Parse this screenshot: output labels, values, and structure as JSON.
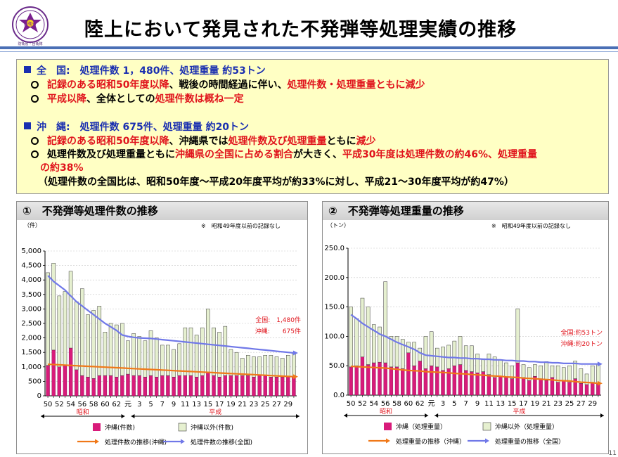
{
  "header": {
    "title": "陸上において発見された不発弾等処理実績の推移",
    "logo_text": "防衛省",
    "logo_subtext": "防衛省・自衛隊"
  },
  "summary": {
    "national": {
      "heading": "全　国:　処理件数 1，480件、処理重量 約53トン",
      "b1_red1": "記録のある昭和50年度以降",
      "b1_text": "、戦後の時間経過に伴い、",
      "b1_red2": "処理件数・処理重量ともに減少",
      "b2_red1": "平成以降",
      "b2_text": "、全体としての",
      "b2_red2": "処理件数は概ね一定"
    },
    "okinawa": {
      "heading": "沖　縄:　処理件数 675件、処理重量 約20トン",
      "b1_red1": "記録のある昭和50年度以降",
      "b1_text1": "、沖縄県では",
      "b1_red2": "処理件数及び処理重量",
      "b1_text2": "ともに",
      "b1_red3": "減少",
      "b2_text1": "処理件数及び処理重量ともに",
      "b2_red1": "沖縄県の全国に占める割合",
      "b2_text2": "が大きく、",
      "b2_red2": "平成30年度は処理件数の約46%、処理重量",
      "b2_red3": "の約38%",
      "note": "（処理件数の全国比は、昭和50年度～平成20年度平均が約33%に対し、平成21～30年度平均が約47%）"
    }
  },
  "colors": {
    "okinawa_bar": "#d81b7a",
    "other_bar": "#e6f0d0",
    "okinawa_line": "#f07818",
    "national_line": "#7078e8",
    "title_blue": "#1a2fb0",
    "accent_red": "#e0141c"
  },
  "chart_data": [
    {
      "type": "bar",
      "id": "count",
      "title": "①　不発弾等処理件数の推移",
      "ylabel": "（件）",
      "note": "※　昭和49年度以前の記録なし",
      "ylim": [
        0,
        5000
      ],
      "yticks": [
        "0",
        "500",
        "1,000",
        "1,500",
        "2,000",
        "2,500",
        "3,000",
        "3,500",
        "4,000",
        "4,500",
        "5,000"
      ],
      "categories": [
        "50",
        "51",
        "52",
        "53",
        "54",
        "55",
        "56",
        "57",
        "58",
        "59",
        "60",
        "61",
        "62",
        "63",
        "元",
        "2",
        "3",
        "4",
        "5",
        "6",
        "7",
        "8",
        "9",
        "10",
        "11",
        "12",
        "13",
        "14",
        "15",
        "16",
        "17",
        "18",
        "19",
        "20",
        "21",
        "22",
        "23",
        "24",
        "25",
        "26",
        "27",
        "28",
        "29",
        "30"
      ],
      "xtick_labels": [
        "50",
        "52",
        "54",
        "56",
        "58",
        "60",
        "62",
        "元",
        "3",
        "5",
        "7",
        "9",
        "11",
        "13",
        "15",
        "17",
        "19",
        "21",
        "23",
        "25",
        "27",
        "29"
      ],
      "era_showa": "昭和",
      "era_heisei": "平成",
      "series": [
        {
          "name": "沖縄(件数)",
          "kind": "bar",
          "values": [
            1050,
            1580,
            1000,
            1050,
            1650,
            900,
            700,
            650,
            600,
            700,
            700,
            700,
            650,
            700,
            750,
            700,
            700,
            650,
            700,
            650,
            700,
            700,
            650,
            700,
            700,
            700,
            650,
            700,
            800,
            700,
            650,
            700,
            700,
            700,
            700,
            700,
            650,
            700,
            700,
            650,
            650,
            650,
            650,
            675
          ]
        },
        {
          "name": "沖縄以外(件数)",
          "kind": "bar",
          "values": [
            3200,
            3000,
            2450,
            2550,
            2650,
            2350,
            3000,
            2150,
            2350,
            2400,
            1500,
            1800,
            1800,
            1800,
            1150,
            1450,
            1350,
            1250,
            1550,
            1350,
            1050,
            1050,
            950,
            1100,
            1650,
            1650,
            1450,
            1650,
            2200,
            1650,
            1550,
            1700,
            900,
            800,
            600,
            700,
            700,
            650,
            700,
            750,
            700,
            650,
            750,
            805
          ]
        },
        {
          "name": "処理件数の推移(沖縄)",
          "kind": "line",
          "values": [
            1090,
            1080,
            1070,
            1060,
            1050,
            1040,
            1030,
            1020,
            1010,
            1000,
            990,
            980,
            970,
            960,
            950,
            940,
            930,
            920,
            910,
            900,
            890,
            880,
            870,
            860,
            850,
            840,
            830,
            820,
            810,
            800,
            790,
            780,
            770,
            760,
            750,
            740,
            730,
            720,
            710,
            700,
            690,
            680,
            670,
            660
          ]
        },
        {
          "name": "処理件数の推移(全国)",
          "kind": "line",
          "values": [
            4150,
            3950,
            3800,
            3650,
            3450,
            3250,
            3100,
            2950,
            2800,
            2650,
            2500,
            2380,
            2260,
            2100,
            2050,
            2020,
            2000,
            1990,
            1980,
            1960,
            1940,
            1920,
            1900,
            1880,
            1860,
            1840,
            1820,
            1800,
            1780,
            1760,
            1740,
            1720,
            1700,
            1680,
            1660,
            1640,
            1620,
            1600,
            1580,
            1560,
            1540,
            1520,
            1500,
            1480
          ]
        }
      ],
      "annotation_line1": "全国:　1,480件",
      "annotation_line2": "沖縄:　　675件",
      "legend": [
        "沖縄(件数)",
        "沖縄以外(件数)",
        "処理件数の推移(沖縄)",
        "処理件数の推移(全国)"
      ]
    },
    {
      "type": "bar",
      "id": "weight",
      "title": "②　不発弾等処理重量の推移",
      "ylabel": "（トン）",
      "note": "※　昭和49年度以前の記録なし",
      "ylim": [
        0,
        250
      ],
      "yticks": [
        "0.0",
        "50.0",
        "100.0",
        "150.0",
        "200.0",
        "250.0"
      ],
      "categories": [
        "50",
        "51",
        "52",
        "53",
        "54",
        "55",
        "56",
        "57",
        "58",
        "59",
        "60",
        "61",
        "62",
        "63",
        "元",
        "2",
        "3",
        "4",
        "5",
        "6",
        "7",
        "8",
        "9",
        "10",
        "11",
        "12",
        "13",
        "14",
        "15",
        "16",
        "17",
        "18",
        "19",
        "20",
        "21",
        "22",
        "23",
        "24",
        "25",
        "26",
        "27",
        "28",
        "29",
        "30"
      ],
      "xtick_labels": [
        "50",
        "52",
        "54",
        "56",
        "58",
        "60",
        "62",
        "元",
        "3",
        "5",
        "7",
        "9",
        "11",
        "13",
        "15",
        "17",
        "19",
        "21",
        "23",
        "25",
        "27",
        "29"
      ],
      "era_showa": "昭和",
      "era_heisei": "平成",
      "series": [
        {
          "name": "沖縄(処理重量)",
          "kind": "bar",
          "values": [
            48,
            50,
            65,
            52,
            55,
            56,
            55,
            48,
            48,
            45,
            72,
            50,
            58,
            45,
            50,
            48,
            42,
            45,
            50,
            52,
            42,
            40,
            38,
            40,
            35,
            30,
            32,
            30,
            28,
            55,
            30,
            25,
            32,
            28,
            25,
            30,
            22,
            25,
            22,
            28,
            20,
            18,
            22,
            20
          ]
        },
        {
          "name": "沖縄以外(処理重量)",
          "kind": "bar",
          "values": [
            102,
            80,
            100,
            98,
            65,
            60,
            138,
            52,
            52,
            50,
            18,
            40,
            22,
            55,
            58,
            32,
            40,
            40,
            42,
            48,
            42,
            44,
            32,
            22,
            35,
            35,
            28,
            25,
            22,
            92,
            22,
            22,
            20,
            22,
            32,
            20,
            28,
            22,
            28,
            30,
            25,
            18,
            28,
            33
          ]
        },
        {
          "name": "処理重量の推移(沖縄)",
          "kind": "line",
          "values": [
            49,
            48.5,
            48,
            47.5,
            47,
            46.5,
            46,
            45,
            44,
            43,
            42,
            41.5,
            41,
            40,
            39.5,
            39,
            38.5,
            38,
            37,
            36.5,
            36,
            35,
            34.5,
            34,
            33,
            32.5,
            32,
            31,
            30.5,
            30,
            29,
            28.5,
            28,
            27,
            26.5,
            26,
            25,
            24.5,
            24,
            23,
            22,
            21.5,
            21,
            20
          ]
        },
        {
          "name": "処理重量の推移(全国)",
          "kind": "line",
          "values": [
            137,
            130,
            122,
            116,
            110,
            104,
            100,
            95,
            90,
            86,
            82,
            78,
            72,
            68,
            67,
            66,
            65,
            64,
            64,
            63,
            63,
            62,
            62,
            61,
            61,
            60,
            60,
            59,
            59,
            58,
            58,
            57,
            57,
            56,
            56,
            55,
            55,
            54,
            54,
            54,
            53,
            53,
            53,
            53
          ]
        }
      ],
      "annotation_line1": "全国:約53トン",
      "annotation_line2": "沖縄:約20トン",
      "legend": [
        "沖縄（処理重量）",
        "沖縄以外（処理重量）",
        "処理重量の推移（沖縄）",
        "処理重量の推移（全国）"
      ]
    }
  ]
}
